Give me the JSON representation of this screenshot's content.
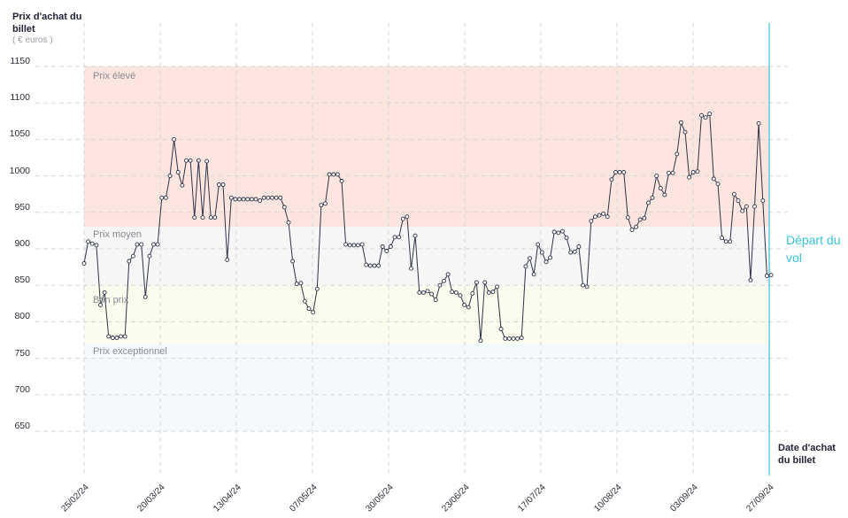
{
  "chart_data": {
    "type": "line",
    "ylabel": "Prix d'achat du billet",
    "yunit": "( € euros )",
    "xlabel": "Date d'achat du billet",
    "ylim": [
      600,
      1150
    ],
    "y_ticks": [
      650,
      700,
      750,
      800,
      850,
      900,
      950,
      1000,
      1050,
      1100,
      1150
    ],
    "x_ticks": [
      "25/02/24",
      "20/03/24",
      "13/04/24",
      "07/05/24",
      "30/05/24",
      "23/06/24",
      "17/07/24",
      "10/08/24",
      "03/09/24",
      "27/09/24"
    ],
    "bands": [
      {
        "label": "Prix élevé",
        "from": 930,
        "to": 1150,
        "color": "#fde5df"
      },
      {
        "label": "Prix moyen",
        "from": 850,
        "to": 930,
        "color": "#f6f6f6"
      },
      {
        "label": "Bon prix",
        "from": 770,
        "to": 850,
        "color": "#fbfbee"
      },
      {
        "label": "Prix exceptionnel",
        "from": 650,
        "to": 770,
        "color": "#f4f9fd"
      }
    ],
    "annotation": "Départ du vol",
    "series": [
      {
        "values": [
          880,
          910,
          907,
          905,
          823,
          840,
          780,
          778,
          778,
          780,
          780,
          883,
          890,
          906,
          906,
          834,
          890,
          906,
          906,
          970,
          970,
          1000,
          1050,
          1005,
          987,
          1021,
          1021,
          943,
          1021,
          943,
          1020,
          943,
          943,
          988,
          988,
          885,
          970,
          968,
          968,
          968,
          968,
          968,
          968,
          966,
          970,
          970,
          970,
          970,
          970,
          957,
          936,
          883,
          852,
          853,
          828,
          818,
          813,
          845,
          960,
          962,
          1002,
          1002,
          1002,
          993,
          906,
          905,
          905,
          905,
          906,
          878,
          877,
          877,
          877,
          903,
          897,
          903,
          916,
          916,
          941,
          944,
          873,
          918,
          840,
          840,
          842,
          838,
          830,
          850,
          856,
          865,
          841,
          840,
          836,
          823,
          820,
          839,
          854,
          774,
          854,
          840,
          841,
          848,
          790,
          777,
          777,
          777,
          777,
          778,
          876,
          887,
          865,
          906,
          895,
          882,
          888,
          923,
          922,
          924,
          915,
          895,
          896,
          903,
          850,
          848,
          938,
          944,
          946,
          948,
          944,
          995,
          1005,
          1005,
          1005,
          943,
          926,
          930,
          940,
          942,
          963,
          970,
          1000,
          983,
          974,
          1004,
          1004,
          1030,
          1073,
          1060,
          998,
          1005,
          1006,
          1083,
          1080,
          1085,
          996,
          989,
          915,
          910,
          910,
          975,
          966,
          952,
          958,
          857,
          958,
          1072,
          966,
          863,
          864
        ]
      }
    ]
  }
}
